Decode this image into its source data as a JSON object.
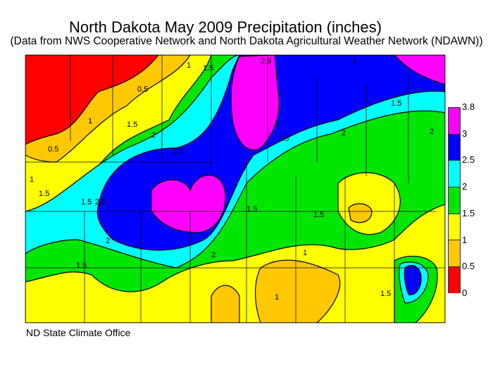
{
  "title": "North Dakota May 2009 Precipitation (inches)",
  "subtitle": "(Data from NWS Cooperative Network and North Dakota Agricultural Weather Network (NDAWN))",
  "credit": "ND State Climate Office",
  "legend": {
    "bins": [
      {
        "label": "3.8",
        "color": "#ff00ff"
      },
      {
        "label": "3",
        "color": "#0000ff"
      },
      {
        "label": "2.5",
        "color": "#00ffff"
      },
      {
        "label": "2",
        "color": "#00e600"
      },
      {
        "label": "1.5",
        "color": "#ffff00"
      },
      {
        "label": "1",
        "color": "#ffc800"
      },
      {
        "label": "0.5",
        "color": "#ff0000"
      }
    ],
    "bottom_label": "0"
  },
  "contour_labels": [
    "1",
    "1.5",
    "2.5",
    "3",
    "0.5",
    "1.5",
    "2",
    "2.5",
    "3",
    "2.5",
    "2",
    "1.5",
    "1",
    "0.5",
    "1",
    "1.5",
    "1.5",
    "2",
    "2.5",
    "1.5",
    "2",
    "1.5",
    "1",
    "1",
    "1.5",
    "1.5",
    "2"
  ]
}
